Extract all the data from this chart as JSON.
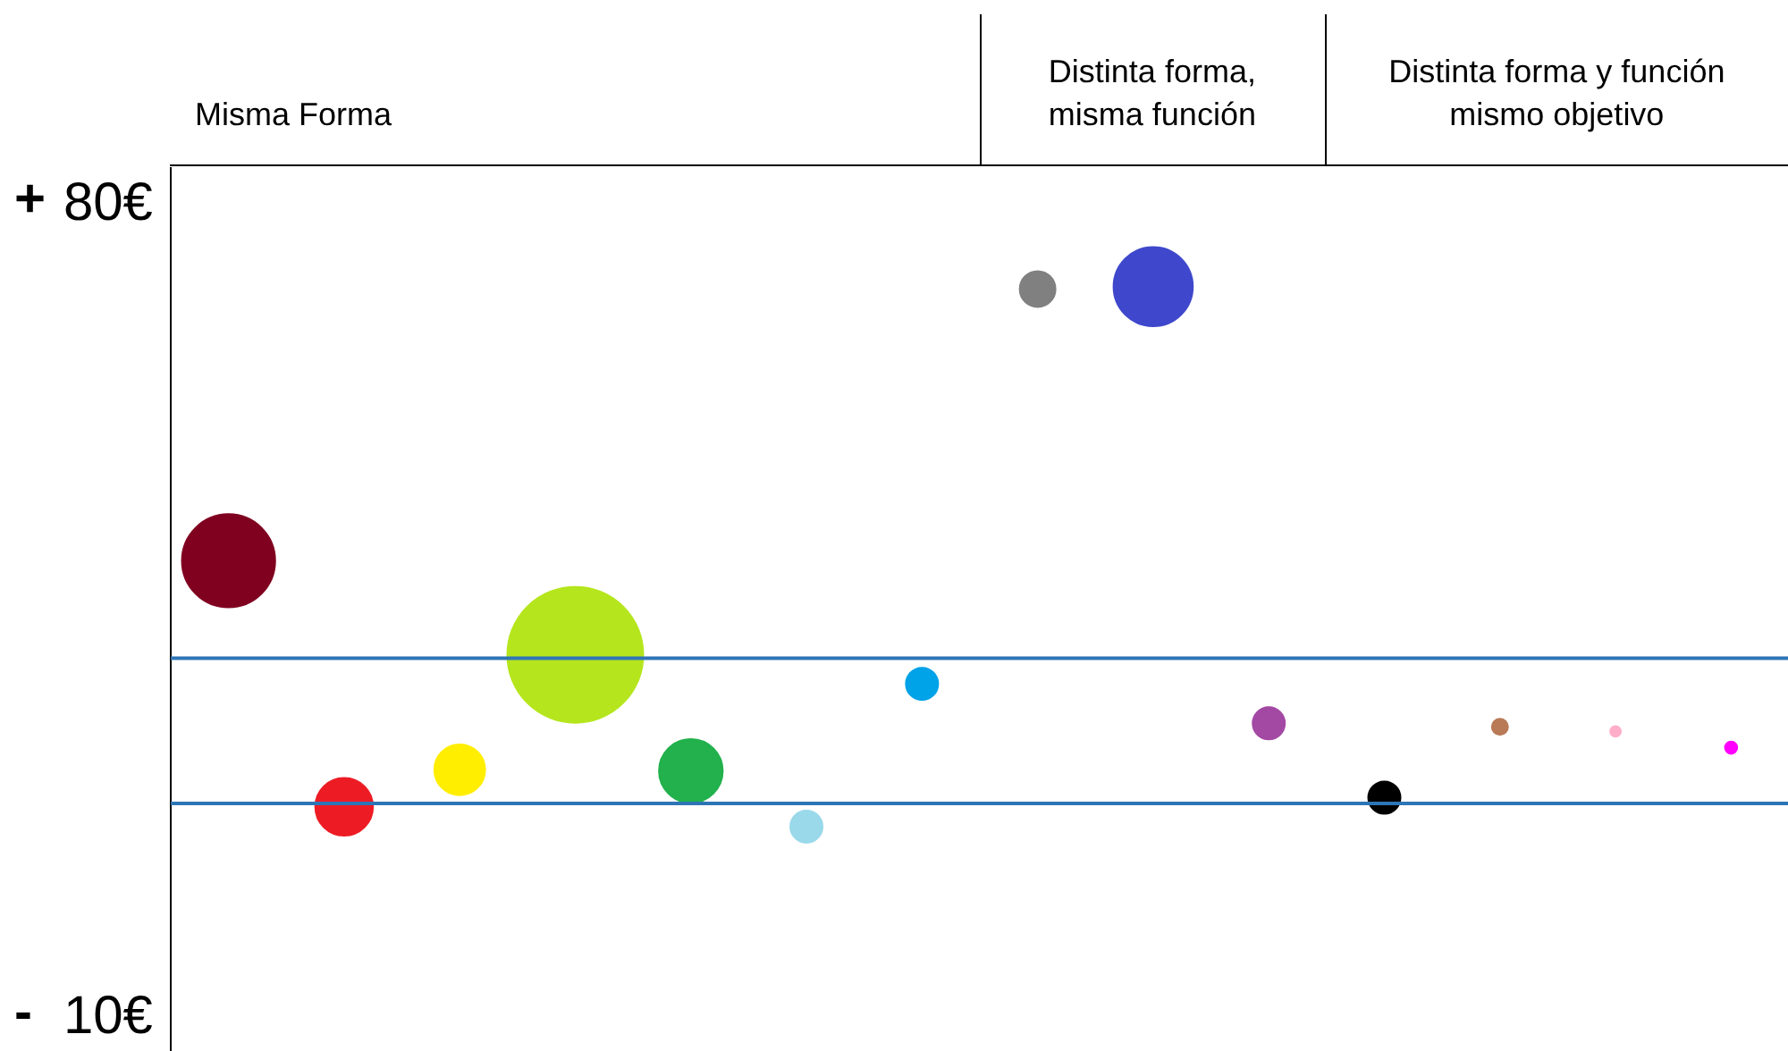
{
  "chart_data": {
    "type": "bubble",
    "categories": [
      null,
      null,
      null,
      null,
      null,
      null,
      null,
      null,
      null,
      null,
      null,
      null,
      null,
      null
    ],
    "series": [
      {
        "values": [
          49.2,
          28.0,
          31.2,
          41.1,
          31.1,
          26.3,
          38.6,
          null,
          null,
          null,
          null,
          null,
          null,
          null
        ],
        "sizes": [
          0.47,
          0.18,
          0.14,
          1,
          0.22,
          0.056,
          0.056,
          null,
          null,
          null,
          null,
          null,
          null,
          null
        ],
        "colors": [
          "#800020",
          "#ed1c24",
          "#ffee00",
          "#b5e61d",
          "#22b14c",
          "#99d9ea",
          "#00a2e8",
          null,
          null,
          null,
          null,
          null,
          null,
          null
        ]
      },
      {
        "values": [
          null,
          null,
          null,
          null,
          null,
          null,
          null,
          72.6,
          72.8,
          35.2,
          null,
          null,
          null,
          null
        ],
        "sizes": [
          null,
          null,
          null,
          null,
          null,
          null,
          null,
          0.069,
          0.34,
          0.056,
          null,
          null,
          null,
          null
        ],
        "colors": [
          null,
          null,
          null,
          null,
          null,
          null,
          null,
          "#808080",
          "#3f48cc",
          "#a349a4",
          null,
          null,
          null,
          null
        ]
      },
      {
        "values": [
          null,
          null,
          null,
          null,
          null,
          null,
          null,
          null,
          null,
          null,
          28.8,
          34.9,
          34.5,
          33.1
        ],
        "sizes": [
          null,
          null,
          null,
          null,
          null,
          null,
          null,
          null,
          null,
          null,
          0.056,
          0.014,
          0.006,
          0.008
        ],
        "colors": [
          null,
          null,
          null,
          null,
          null,
          null,
          null,
          null,
          null,
          null,
          "#000000",
          "#b97a57",
          "#ffaec9",
          "#ff00ff"
        ]
      }
    ],
    "ylim": [
      6.9,
      83.1
    ],
    "yticks": [
      {
        "value": 80,
        "label": "80€"
      },
      {
        "value": 10,
        "label": "10€"
      }
    ],
    "tick_labels": "y",
    "grid": false,
    "ref_lines": [
      {
        "axis": "y",
        "value": 40.8,
        "color": "#2e75b6"
      },
      {
        "axis": "y",
        "value": 28.3,
        "color": "#2e75b6"
      }
    ],
    "annotations": [
      "Misma Forma",
      "Distinta forma,\nmisma función",
      "Distinta forma y función\nmismo objetivo",
      "+",
      "-"
    ]
  }
}
